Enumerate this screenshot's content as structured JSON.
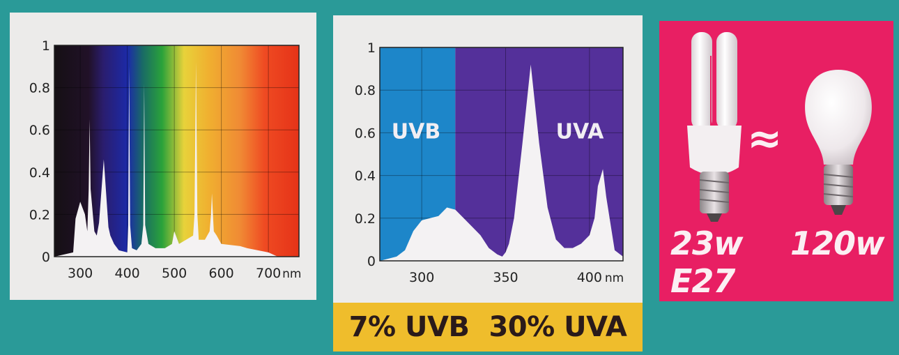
{
  "chart_data": [
    {
      "type": "area",
      "title": "",
      "xlabel": "nm",
      "ylabel": "",
      "x_ticks": [
        "300",
        "400",
        "500",
        "600",
        "700"
      ],
      "x_unit": "nm",
      "y_ticks": [
        "0",
        "0.2",
        "0.4",
        "0.6",
        "0.8",
        "1"
      ],
      "xlim": [
        245,
        765
      ],
      "ylim": [
        0,
        1
      ],
      "grid": true,
      "background": "visible spectrum gradient",
      "series": [
        {
          "x": [
            245,
            285,
            290,
            300,
            310,
            315,
            318,
            320,
            322,
            330,
            335,
            340,
            348,
            350,
            352,
            360,
            364,
            368,
            372,
            382,
            400,
            402,
            404,
            406,
            410,
            420,
            430,
            434,
            436,
            438,
            445,
            460,
            480,
            495,
            500,
            510,
            540,
            543,
            546,
            549,
            552,
            565,
            575,
            578,
            580,
            582,
            584,
            590,
            600,
            640,
            655,
            700,
            720,
            765
          ],
          "y": [
            0,
            0.02,
            0.18,
            0.26,
            0.2,
            0.12,
            0.32,
            0.65,
            0.32,
            0.12,
            0.1,
            0.16,
            0.4,
            0.46,
            0.4,
            0.14,
            0.1,
            0.08,
            0.06,
            0.03,
            0.02,
            0.15,
            0.9,
            0.15,
            0.04,
            0.03,
            0.06,
            0.15,
            0.82,
            0.15,
            0.06,
            0.04,
            0.04,
            0.06,
            0.12,
            0.06,
            0.1,
            0.2,
            0.92,
            0.2,
            0.08,
            0.08,
            0.12,
            0.2,
            0.3,
            0.2,
            0.12,
            0.1,
            0.06,
            0.05,
            0.04,
            0.02,
            0,
            0
          ]
        }
      ]
    },
    {
      "type": "area",
      "title": "",
      "xlabel": "nm",
      "ylabel": "",
      "x_ticks": [
        "300",
        "350",
        "400"
      ],
      "x_unit": "nm",
      "y_ticks": [
        "0",
        "0.2",
        "0.4",
        "0.6",
        "0.8",
        "1"
      ],
      "xlim": [
        275,
        420
      ],
      "ylim": [
        0,
        1
      ],
      "grid": true,
      "regions": [
        {
          "label": "UVB",
          "from": 275,
          "to": 320,
          "color": "#1d86c9"
        },
        {
          "label": "UVA",
          "from": 320,
          "to": 420,
          "color": "#54309a"
        }
      ],
      "series": [
        {
          "x": [
            275,
            285,
            290,
            295,
            300,
            305,
            310,
            315,
            320,
            325,
            330,
            335,
            340,
            345,
            348,
            350,
            352,
            355,
            360,
            365,
            370,
            375,
            380,
            385,
            390,
            395,
            400,
            403,
            405,
            408,
            410,
            415,
            420
          ],
          "y": [
            0,
            0.02,
            0.05,
            0.14,
            0.19,
            0.2,
            0.21,
            0.25,
            0.24,
            0.2,
            0.16,
            0.12,
            0.06,
            0.03,
            0.02,
            0.04,
            0.08,
            0.2,
            0.55,
            0.92,
            0.55,
            0.25,
            0.1,
            0.06,
            0.06,
            0.08,
            0.12,
            0.2,
            0.35,
            0.43,
            0.3,
            0.05,
            0.02
          ]
        }
      ]
    }
  ],
  "banner": {
    "uvb": "7% UVB",
    "uva": "30% UVA"
  },
  "lamp": {
    "cfl_power": "23w",
    "cfl_socket": "E27",
    "approx_symbol": "≈",
    "incandescent_power": "120w",
    "icons": [
      "cfl-bulb-icon",
      "incandescent-bulb-icon"
    ]
  },
  "colors": {
    "background": "#2a9a98",
    "uvb": "#1d86c9",
    "uva": "#54309a",
    "lamp_panel": "#e81f63",
    "banner": "#efbd2c"
  }
}
